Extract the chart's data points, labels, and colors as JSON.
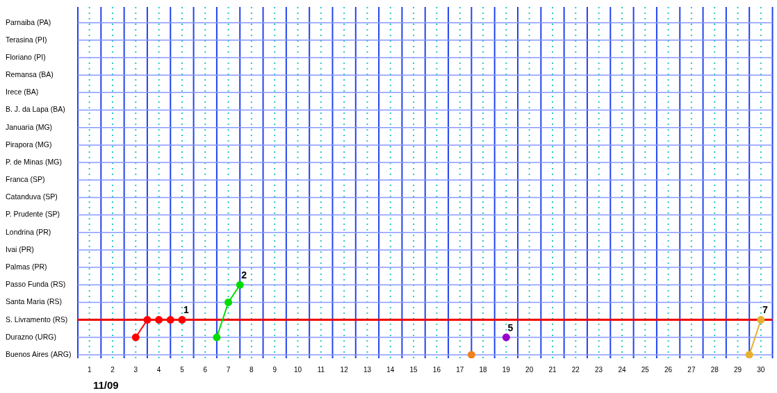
{
  "chart_data": {
    "type": "line",
    "orientation": "horizontal",
    "categories": [
      "Parnaiba (PA)",
      "Terasina (PI)",
      "Floriano (PI)",
      "Remansa (BA)",
      "Irece (BA)",
      "B. J. da Lapa (BA)",
      "Januaria (MG)",
      "Pirapora (MG)",
      "P. de Minas (MG)",
      "Franca (SP)",
      "Catanduva (SP)",
      "P. Prudente (SP)",
      "Londrina (PR)",
      "Ivai (PR)",
      "Palmas (PR)",
      "Passo Funda (RS)",
      "Santa Maria (RS)",
      "S. Livramento (RS)",
      "Durazno (URG)",
      "Buenos Aires (ARG)"
    ],
    "series": [
      {
        "name": "1",
        "color": "#ff0000",
        "x": [
          "Durazno (URG)",
          "S. Livramento (RS)",
          "S. Livramento (RS)",
          "S. Livramento (RS)",
          "S. Livramento (RS)"
        ],
        "values": [
          3,
          3.5,
          4,
          4.5,
          5
        ]
      },
      {
        "name": "2",
        "color": "#00dd00",
        "x": [
          "Durazno (URG)",
          "Santa Maria (RS)",
          "Passo Funda (RS)"
        ],
        "values": [
          6.5,
          7,
          7.5
        ]
      },
      {
        "name": "5",
        "color": "#9900cc",
        "x": [
          "Durazno (URG)"
        ],
        "values": [
          19
        ]
      },
      {
        "color": "#f08020",
        "x": [
          "Buenos Aires (ARG)"
        ],
        "values": [
          17.5
        ]
      },
      {
        "name": "7",
        "color": "#e8b030",
        "x": [
          "Buenos Aires (ARG)",
          "S. Livramento (RS)"
        ],
        "values": [
          29.5,
          30
        ]
      }
    ],
    "xlim": [
      0.5,
      30.5
    ],
    "xticks": [
      {
        "value": 0.5,
        "label": null
      },
      1,
      {
        "value": 1.5,
        "label": null
      },
      2,
      {
        "value": 2.5,
        "label": null
      },
      3,
      {
        "value": 3.5,
        "label": null
      },
      4,
      {
        "value": 4.5,
        "label": null
      },
      5,
      {
        "value": 5.5,
        "label": null
      },
      6,
      {
        "value": 6.5,
        "label": null
      },
      7,
      {
        "value": 7.5,
        "label": null
      },
      8,
      {
        "value": 8.5,
        "label": null
      },
      9,
      {
        "value": 9.5,
        "label": null
      },
      10,
      {
        "value": 10.5,
        "label": null
      },
      11,
      {
        "value": 11.5,
        "label": null
      },
      12,
      {
        "value": 12.5,
        "label": null
      },
      13,
      {
        "value": 13.5,
        "label": null
      },
      14,
      {
        "value": 14.5,
        "label": null
      },
      15,
      {
        "value": 15.5,
        "label": null
      },
      16,
      {
        "value": 16.5,
        "label": null
      },
      17,
      {
        "value": 17.5,
        "label": null
      },
      18,
      {
        "value": 18.5,
        "label": null
      },
      19,
      {
        "value": 19.5,
        "label": null
      },
      20,
      {
        "value": 20.5,
        "label": null
      },
      21,
      {
        "value": 21.5,
        "label": null
      },
      22,
      {
        "value": 22.5,
        "label": null
      },
      23,
      {
        "value": 23.5,
        "label": null
      },
      24,
      {
        "value": 24.5,
        "label": null
      },
      25,
      {
        "value": 25.5,
        "label": null
      },
      26,
      {
        "value": 26.5,
        "label": null
      },
      27,
      {
        "value": 27.5,
        "label": null
      },
      28,
      {
        "value": 28.5,
        "label": null
      },
      29,
      {
        "value": 29.5,
        "label": null
      },
      30,
      {
        "value": 30.5,
        "label": null
      }
    ],
    "ref_lines": [
      {
        "axis": "y",
        "value": "S. Livramento (RS)",
        "color": "#ee0000"
      }
    ],
    "annotations": [
      "11/09"
    ],
    "grid": true,
    "legend": false,
    "marker": "circle",
    "line_style": "solid"
  }
}
